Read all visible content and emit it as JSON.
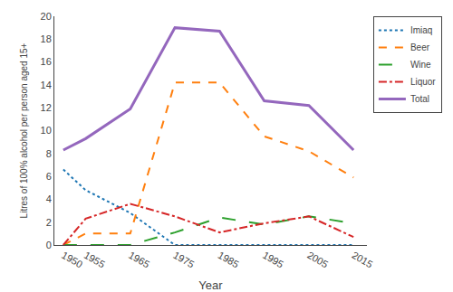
{
  "chart_data": {
    "type": "line",
    "xlabel": "Year",
    "ylabel": "Litres of 100% alcohol per person aged 15+",
    "x": [
      1950,
      1955,
      1965,
      1975,
      1985,
      1995,
      2005,
      2015
    ],
    "series": [
      {
        "name": "Imiaq",
        "line_style": "dotted",
        "values": [
          6.6,
          4.8,
          2.8,
          0.0,
          0.0,
          0.0,
          0.0,
          0.0
        ]
      },
      {
        "name": "Beer",
        "line_style": "dashed",
        "values": [
          0.0,
          1.0,
          1.0,
          14.2,
          14.2,
          9.5,
          8.2,
          5.9
        ]
      },
      {
        "name": "Wine",
        "line_style": "longdashed",
        "values": [
          0.0,
          0.0,
          0.0,
          1.1,
          2.4,
          1.8,
          2.5,
          1.9
        ]
      },
      {
        "name": "Liquor",
        "line_style": "dashdot",
        "values": [
          0.0,
          2.3,
          3.6,
          2.5,
          1.1,
          1.9,
          2.5,
          0.7
        ]
      },
      {
        "name": "Total",
        "line_style": "solid",
        "values": [
          8.3,
          9.3,
          11.9,
          19.0,
          18.7,
          12.6,
          12.2,
          8.3
        ]
      }
    ],
    "xlim": [
      1948,
      2018
    ],
    "xticks": [
      1950,
      1955,
      1965,
      1975,
      1985,
      1995,
      2005,
      2015
    ],
    "ylim": [
      0,
      20
    ],
    "yticks": [
      0,
      2,
      4,
      6,
      8,
      10,
      12,
      14,
      16,
      18,
      20
    ],
    "grid": false,
    "legend": "upper right"
  }
}
